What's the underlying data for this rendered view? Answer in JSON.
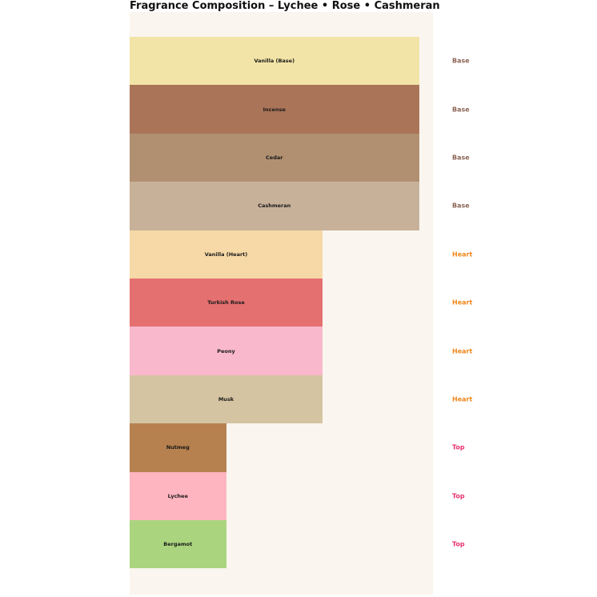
{
  "title": "Fragrance Composition – Lychee • Rose • Cashmeran",
  "chart_data": {
    "type": "bar",
    "orientation": "horizontal",
    "title": "Fragrance Composition – Lychee • Rose • Cashmeran",
    "xlabel": "",
    "ylabel": "",
    "xlim": [
      0,
      3.15
    ],
    "grid": false,
    "axes_visible": false,
    "legend": "none",
    "plot_background": "#FAF5EE",
    "page_background": "#FFFFFF",
    "bar_label_color": "#1a1a1a",
    "categories": [
      "Vanilla (Base)",
      "Incense",
      "Cedar",
      "Cashmeran",
      "Vanilla (Heart)",
      "Turkish Rose",
      "Peony",
      "Musk",
      "Nutmeg",
      "Lychee",
      "Bergamot"
    ],
    "values": [
      3,
      3,
      3,
      3,
      2,
      2,
      2,
      2,
      1,
      1,
      1
    ],
    "notes": [
      {
        "label": "Vanilla (Base)",
        "tier": "Base",
        "value": 3,
        "color": "#F2E4A6"
      },
      {
        "label": "Incense",
        "tier": "Base",
        "value": 3,
        "color": "#AA7458"
      },
      {
        "label": "Cedar",
        "tier": "Base",
        "value": 3,
        "color": "#B19072"
      },
      {
        "label": "Cashmeran",
        "tier": "Base",
        "value": 3,
        "color": "#C7B199"
      },
      {
        "label": "Vanilla (Heart)",
        "tier": "Heart",
        "value": 2,
        "color": "#F6D9A6"
      },
      {
        "label": "Turkish Rose",
        "tier": "Heart",
        "value": 2,
        "color": "#E57070"
      },
      {
        "label": "Peony",
        "tier": "Heart",
        "value": 2,
        "color": "#F9B8CB"
      },
      {
        "label": "Musk",
        "tier": "Heart",
        "value": 2,
        "color": "#D5C4A2"
      },
      {
        "label": "Nutmeg",
        "tier": "Top",
        "value": 1,
        "color": "#B6814E"
      },
      {
        "label": "Lychee",
        "tier": "Top",
        "value": 1,
        "color": "#FFB5C0"
      },
      {
        "label": "Bergamot",
        "tier": "Top",
        "value": 1,
        "color": "#AAD57E"
      }
    ],
    "tier_label_colors": {
      "Base": "#8A6455",
      "Heart": "#F08518",
      "Top": "#E8326D"
    }
  }
}
